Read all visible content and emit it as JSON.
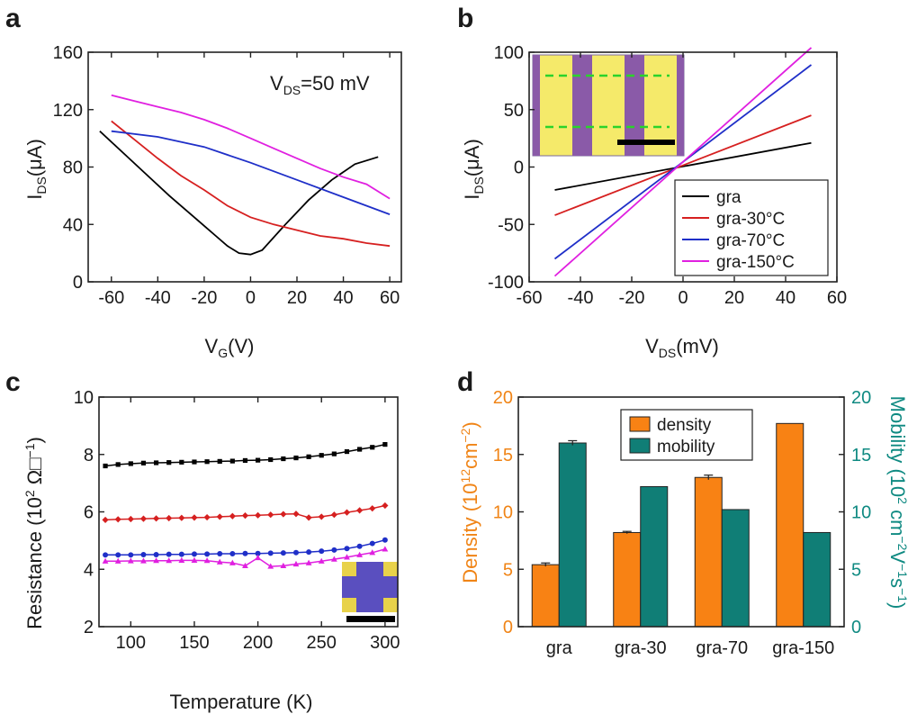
{
  "chart_data": [
    {
      "panel": "a",
      "type": "line",
      "xlabel": "V",
      "xlabel_sub": "G",
      "xlabel_unit": "(V)",
      "ylabel": "I",
      "ylabel_sub": "DS",
      "ylabel_unit": "(μA)",
      "annotation": {
        "main": "V",
        "sub": "DS",
        "rest": "=50 mV"
      },
      "xlim": [
        -70,
        65
      ],
      "ylim": [
        0,
        160
      ],
      "xticks": [
        -60,
        -40,
        -20,
        0,
        20,
        40,
        60
      ],
      "yticks": [
        0,
        40,
        80,
        120,
        160
      ],
      "series": [
        {
          "name": "gra",
          "color": "#000000",
          "x": [
            -65,
            -55,
            -45,
            -35,
            -25,
            -15,
            -10,
            -5,
            0,
            5,
            15,
            25,
            35,
            45,
            55
          ],
          "y": [
            105,
            90,
            75,
            60,
            46,
            32,
            25,
            20,
            19,
            22,
            40,
            57,
            71,
            82,
            87
          ]
        },
        {
          "name": "gra-30°C",
          "color": "#d62020",
          "x": [
            -60,
            -50,
            -40,
            -30,
            -20,
            -10,
            0,
            10,
            20,
            30,
            40,
            50,
            60
          ],
          "y": [
            112,
            99,
            86,
            74,
            64,
            53,
            45,
            40,
            36,
            32,
            30,
            27,
            25
          ]
        },
        {
          "name": "gra-70°C",
          "color": "#1f2fc8",
          "x": [
            -60,
            -40,
            -20,
            0,
            20,
            40,
            60
          ],
          "y": [
            105,
            101,
            94,
            83,
            71,
            59,
            47
          ]
        },
        {
          "name": "gra-150°C",
          "color": "#e020e0",
          "x": [
            -60,
            -50,
            -40,
            -30,
            -20,
            -10,
            0,
            10,
            20,
            30,
            40,
            50,
            60
          ],
          "y": [
            130,
            126,
            122,
            118,
            113,
            107,
            100,
            93,
            86,
            79,
            73,
            68,
            58
          ]
        }
      ]
    },
    {
      "panel": "b",
      "type": "line",
      "xlabel": "V",
      "xlabel_sub": "DS",
      "xlabel_unit": "(mV)",
      "ylabel": "I",
      "ylabel_sub": "DS",
      "ylabel_unit": "(μA)",
      "xlim": [
        -60,
        60
      ],
      "ylim": [
        -100,
        100
      ],
      "xticks": [
        -60,
        -40,
        -20,
        0,
        20,
        40,
        60
      ],
      "yticks": [
        -100,
        -50,
        0,
        50,
        100
      ],
      "legend_position": "bottom-right",
      "series": [
        {
          "name": "gra",
          "color": "#000000",
          "x": [
            -50,
            50
          ],
          "y": [
            -20,
            21
          ]
        },
        {
          "name": "gra-30°C",
          "color": "#d62020",
          "x": [
            -50,
            50
          ],
          "y": [
            -42,
            45
          ]
        },
        {
          "name": "gra-70°C",
          "color": "#1f2fc8",
          "x": [
            -50,
            50
          ],
          "y": [
            -80,
            89
          ]
        },
        {
          "name": "gra-150°C",
          "color": "#e020e0",
          "x": [
            -50,
            50
          ],
          "y": [
            -95,
            104
          ]
        }
      ]
    },
    {
      "panel": "c",
      "type": "scatter",
      "xlabel": "Temperature (K)",
      "ylabel": "Resistance (10",
      "ylabel_exp": "2",
      "ylabel_unit": " Ω□",
      "ylabel_exp2": "−1",
      "ylabel_close": ")",
      "xlim": [
        75,
        310
      ],
      "ylim": [
        2,
        10
      ],
      "xticks": [
        100,
        150,
        200,
        250,
        300
      ],
      "yticks": [
        2,
        4,
        6,
        8,
        10
      ],
      "series": [
        {
          "color": "#000000",
          "marker": "square",
          "x": [
            80,
            90,
            100,
            110,
            120,
            130,
            140,
            150,
            160,
            170,
            180,
            190,
            200,
            210,
            220,
            230,
            240,
            250,
            260,
            270,
            280,
            290,
            300
          ],
          "y": [
            7.6,
            7.65,
            7.68,
            7.7,
            7.71,
            7.72,
            7.73,
            7.74,
            7.75,
            7.76,
            7.77,
            7.79,
            7.8,
            7.82,
            7.85,
            7.88,
            7.92,
            7.97,
            8.02,
            8.1,
            8.18,
            8.25,
            8.35
          ]
        },
        {
          "color": "#d62020",
          "marker": "diamond",
          "x": [
            80,
            90,
            100,
            110,
            120,
            130,
            140,
            150,
            160,
            170,
            180,
            190,
            200,
            210,
            220,
            230,
            240,
            250,
            260,
            270,
            280,
            290,
            300
          ],
          "y": [
            5.72,
            5.74,
            5.75,
            5.76,
            5.77,
            5.78,
            5.79,
            5.8,
            5.81,
            5.83,
            5.85,
            5.87,
            5.88,
            5.9,
            5.92,
            5.93,
            5.8,
            5.83,
            5.9,
            5.98,
            6.05,
            6.12,
            6.22
          ]
        },
        {
          "color": "#1f2fc8",
          "marker": "circle",
          "x": [
            80,
            90,
            100,
            110,
            120,
            130,
            140,
            150,
            160,
            170,
            180,
            190,
            200,
            210,
            220,
            230,
            240,
            250,
            260,
            270,
            280,
            290,
            300
          ],
          "y": [
            4.5,
            4.5,
            4.5,
            4.51,
            4.51,
            4.52,
            4.52,
            4.53,
            4.53,
            4.54,
            4.54,
            4.55,
            4.55,
            4.56,
            4.57,
            4.58,
            4.6,
            4.63,
            4.67,
            4.72,
            4.8,
            4.9,
            5.02
          ]
        },
        {
          "color": "#e020e0",
          "marker": "triangle",
          "x": [
            80,
            90,
            100,
            110,
            120,
            130,
            140,
            150,
            160,
            170,
            180,
            190,
            200,
            210,
            220,
            230,
            240,
            250,
            260,
            270,
            280,
            290,
            300
          ],
          "y": [
            4.28,
            4.28,
            4.29,
            4.29,
            4.3,
            4.3,
            4.31,
            4.31,
            4.3,
            4.25,
            4.22,
            4.12,
            4.4,
            4.1,
            4.12,
            4.18,
            4.22,
            4.28,
            4.35,
            4.42,
            4.5,
            4.58,
            4.7
          ]
        }
      ]
    },
    {
      "panel": "d",
      "type": "bar",
      "categories": [
        "gra",
        "gra-30",
        "gra-70",
        "gra-150"
      ],
      "left_axis": {
        "label": "Density (10",
        "exp": "12",
        "unit": "cm",
        "exp2": "−2",
        "close": ")",
        "color": "#f08416",
        "ylim": [
          0,
          20
        ],
        "yticks": [
          0,
          5,
          10,
          15,
          20
        ]
      },
      "right_axis": {
        "label": "Mobility (10",
        "exp": "2",
        "unit": " cm",
        "exp2": "−2",
        "unit2": "V",
        "exp3": "−1",
        "unit3": "s",
        "exp4": "−1",
        "close": ")",
        "color": "#0f8a82",
        "ylim": [
          0,
          20
        ],
        "yticks": [
          0,
          5,
          10,
          15,
          20
        ]
      },
      "legend_position": "top-center",
      "series": [
        {
          "name": "density",
          "color": "#f88214",
          "values": [
            5.4,
            8.2,
            13.0,
            17.7
          ],
          "errors": [
            0.15,
            0.1,
            0.2,
            0.0
          ]
        },
        {
          "name": "mobility",
          "color": "#107e76",
          "values": [
            16.0,
            12.2,
            10.2,
            8.2
          ],
          "errors": [
            0.2,
            0.0,
            0.0,
            0.0
          ]
        }
      ]
    }
  ],
  "panel_labels": [
    "a",
    "b",
    "c",
    "d"
  ]
}
